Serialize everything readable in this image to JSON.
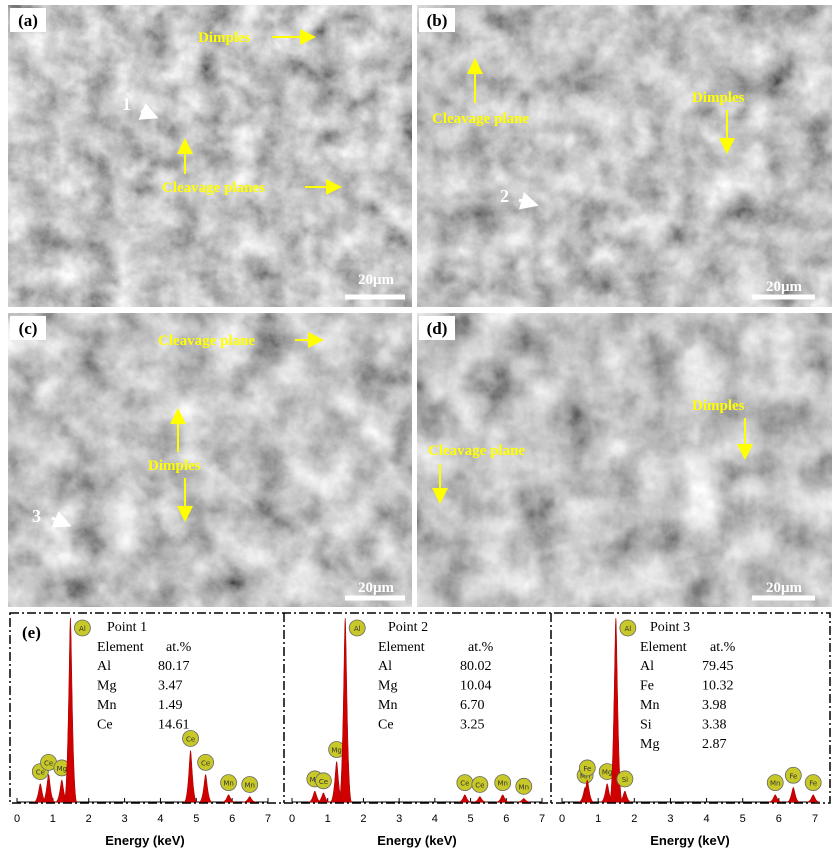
{
  "panels": [
    {
      "label": "(a)",
      "scale": "20μm",
      "annotations": [
        "Dimples",
        "Cleavage planes"
      ],
      "markers": [
        "1"
      ]
    },
    {
      "label": "(b)",
      "scale": "20μm",
      "annotations": [
        "Cleavage plane",
        "Dimples"
      ],
      "markers": [
        "2"
      ]
    },
    {
      "label": "(c)",
      "scale": "20μm",
      "annotations": [
        "Cleavage plane",
        "Dimples"
      ],
      "markers": [
        "3"
      ]
    },
    {
      "label": "(d)",
      "scale": "20μm",
      "annotations": [
        "Cleavage plane",
        "Dimples"
      ],
      "markers": []
    }
  ],
  "eds": {
    "label": "(e)",
    "x_title": "Energy (keV)",
    "xlim": [
      0,
      7
    ],
    "xticks": [
      0,
      1,
      2,
      3,
      4,
      5,
      6,
      7
    ],
    "ylim": [
      0,
      100
    ],
    "spectra": [
      {
        "title": "Point 1",
        "header": [
          "Element",
          "at.%"
        ],
        "rows": [
          [
            "Al",
            "80.17"
          ],
          [
            "Mg",
            "3.47"
          ],
          [
            "Mn",
            "1.49"
          ],
          [
            "Ce",
            "14.61"
          ]
        ],
        "peaks": [
          {
            "x": 0.65,
            "y": 10,
            "label": "Ce"
          },
          {
            "x": 0.88,
            "y": 15,
            "label": "Ce"
          },
          {
            "x": 1.25,
            "y": 12,
            "label": "Mg"
          },
          {
            "x": 1.49,
            "y": 100,
            "label": "Al"
          },
          {
            "x": 4.84,
            "y": 28,
            "label": "Ce"
          },
          {
            "x": 5.26,
            "y": 15,
            "label": "Ce"
          },
          {
            "x": 5.9,
            "y": 4,
            "label": "Mn"
          },
          {
            "x": 6.49,
            "y": 3,
            "label": "Mn"
          }
        ]
      },
      {
        "title": "Point 2",
        "header": [
          "Element",
          "at.%"
        ],
        "rows": [
          [
            "Al",
            "80.02"
          ],
          [
            "Mg",
            "10.04"
          ],
          [
            "Mn",
            "6.70"
          ],
          [
            "Ce",
            "3.25"
          ]
        ],
        "peaks": [
          {
            "x": 0.64,
            "y": 6,
            "label": "Mn"
          },
          {
            "x": 0.88,
            "y": 5,
            "label": "Ce"
          },
          {
            "x": 1.25,
            "y": 22,
            "label": "Mg"
          },
          {
            "x": 1.49,
            "y": 100,
            "label": "Al"
          },
          {
            "x": 4.84,
            "y": 4,
            "label": "Ce"
          },
          {
            "x": 5.26,
            "y": 3,
            "label": "Ce"
          },
          {
            "x": 5.9,
            "y": 4,
            "label": "Mn"
          },
          {
            "x": 6.49,
            "y": 2,
            "label": "Mn"
          }
        ]
      },
      {
        "title": "Point 3",
        "header": [
          "Element",
          "at.%"
        ],
        "rows": [
          [
            "Al",
            "79.45"
          ],
          [
            "Fe",
            "10.32"
          ],
          [
            "Mn",
            "3.98"
          ],
          [
            "Si",
            "3.38"
          ],
          [
            "Mg",
            "2.87"
          ]
        ],
        "peaks": [
          {
            "x": 0.64,
            "y": 8,
            "label": "Mn"
          },
          {
            "x": 0.7,
            "y": 12,
            "label": "Fe"
          },
          {
            "x": 1.25,
            "y": 10,
            "label": "Mg"
          },
          {
            "x": 1.49,
            "y": 100,
            "label": "Al"
          },
          {
            "x": 1.74,
            "y": 6,
            "label": "Si"
          },
          {
            "x": 5.9,
            "y": 4,
            "label": "Mn"
          },
          {
            "x": 6.4,
            "y": 8,
            "label": "Fe"
          },
          {
            "x": 6.95,
            "y": 4,
            "label": "Fe"
          }
        ]
      }
    ]
  }
}
